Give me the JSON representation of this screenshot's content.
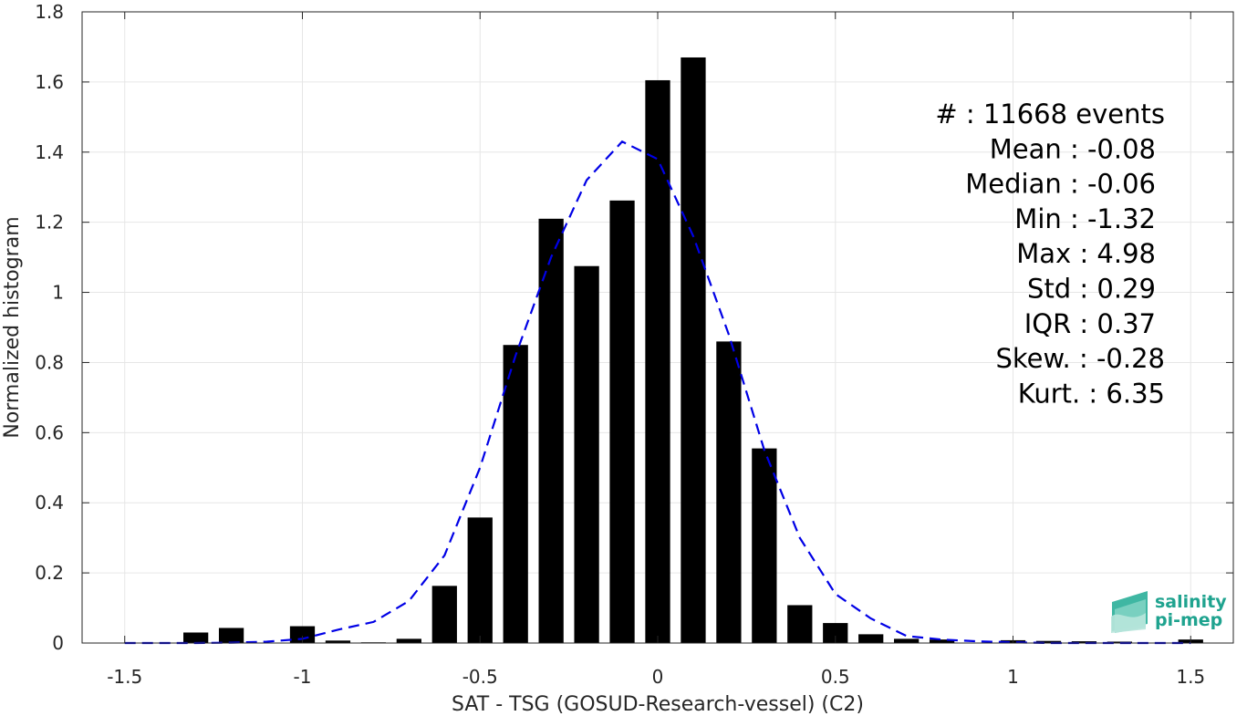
{
  "chart_data": {
    "type": "bar",
    "xlabel": "SAT - TSG (GOSUD-Research-vessel) (C2)",
    "ylabel": "Normalized histogram",
    "xlim": [
      -1.62,
      1.62
    ],
    "ylim": [
      0,
      1.8
    ],
    "xticks": [
      -1.5,
      -1,
      -0.5,
      0,
      0.5,
      1,
      1.5
    ],
    "xtick_labels": [
      "-1.5",
      "-1",
      "-0.5",
      "0",
      "0.5",
      "1",
      "1.5"
    ],
    "yticks": [
      0,
      0.2,
      0.4,
      0.6,
      0.8,
      1,
      1.2,
      1.4,
      1.6,
      1.8
    ],
    "ytick_labels": [
      "0",
      "0.2",
      "0.4",
      "0.6",
      "0.8",
      "1",
      "1.2",
      "1.4",
      "1.6",
      "1.8"
    ],
    "grid": true,
    "bar_color": "#000000",
    "bar_width": 0.07,
    "bars": {
      "x": [
        -1.3,
        -1.2,
        -1.0,
        -0.9,
        -0.8,
        -0.7,
        -0.6,
        -0.5,
        -0.4,
        -0.3,
        -0.2,
        -0.1,
        0.0,
        0.1,
        0.2,
        0.3,
        0.4,
        0.5,
        0.6,
        0.7,
        0.8,
        1.0,
        1.1,
        1.2,
        1.3,
        1.5
      ],
      "values": [
        0.03,
        0.043,
        0.048,
        0.007,
        0.002,
        0.012,
        0.163,
        0.358,
        0.85,
        1.21,
        1.075,
        1.262,
        1.605,
        1.67,
        0.86,
        0.555,
        0.108,
        0.057,
        0.025,
        0.012,
        0.01,
        0.008,
        0.006,
        0.005,
        0.004,
        0.01
      ]
    },
    "fit_curve": {
      "color": "#0000e6",
      "style": "dashed",
      "x": [
        -1.5,
        -1.4,
        -1.3,
        -1.2,
        -1.1,
        -1.0,
        -0.9,
        -0.8,
        -0.7,
        -0.6,
        -0.5,
        -0.4,
        -0.3,
        -0.2,
        -0.1,
        0.0,
        0.1,
        0.2,
        0.3,
        0.4,
        0.5,
        0.6,
        0.7,
        0.8,
        0.9,
        1.0,
        1.1,
        1.2,
        1.3,
        1.4,
        1.5
      ],
      "y": [
        0.0,
        0.0,
        0.0,
        0.001,
        0.004,
        0.012,
        0.038,
        0.06,
        0.12,
        0.25,
        0.5,
        0.82,
        1.1,
        1.32,
        1.43,
        1.38,
        1.16,
        0.88,
        0.55,
        0.3,
        0.14,
        0.07,
        0.02,
        0.01,
        0.005,
        0.002,
        0.0,
        0.0,
        0.0,
        0.0,
        0.0
      ]
    },
    "stats": [
      {
        "label": "#  : 11668 events"
      },
      {
        "label": "Mean : -0.08"
      },
      {
        "label": "Median : -0.06"
      },
      {
        "label": "Min : -1.32"
      },
      {
        "label": "Max : 4.98"
      },
      {
        "label": "Std : 0.29"
      },
      {
        "label": "IQR : 0.37"
      },
      {
        "label": "Skew. : -0.28"
      },
      {
        "label": "Kurt. : 6.35"
      }
    ]
  },
  "logo": {
    "line1": "salinity",
    "line2": "pi-mep",
    "color": "#1fa38f"
  }
}
